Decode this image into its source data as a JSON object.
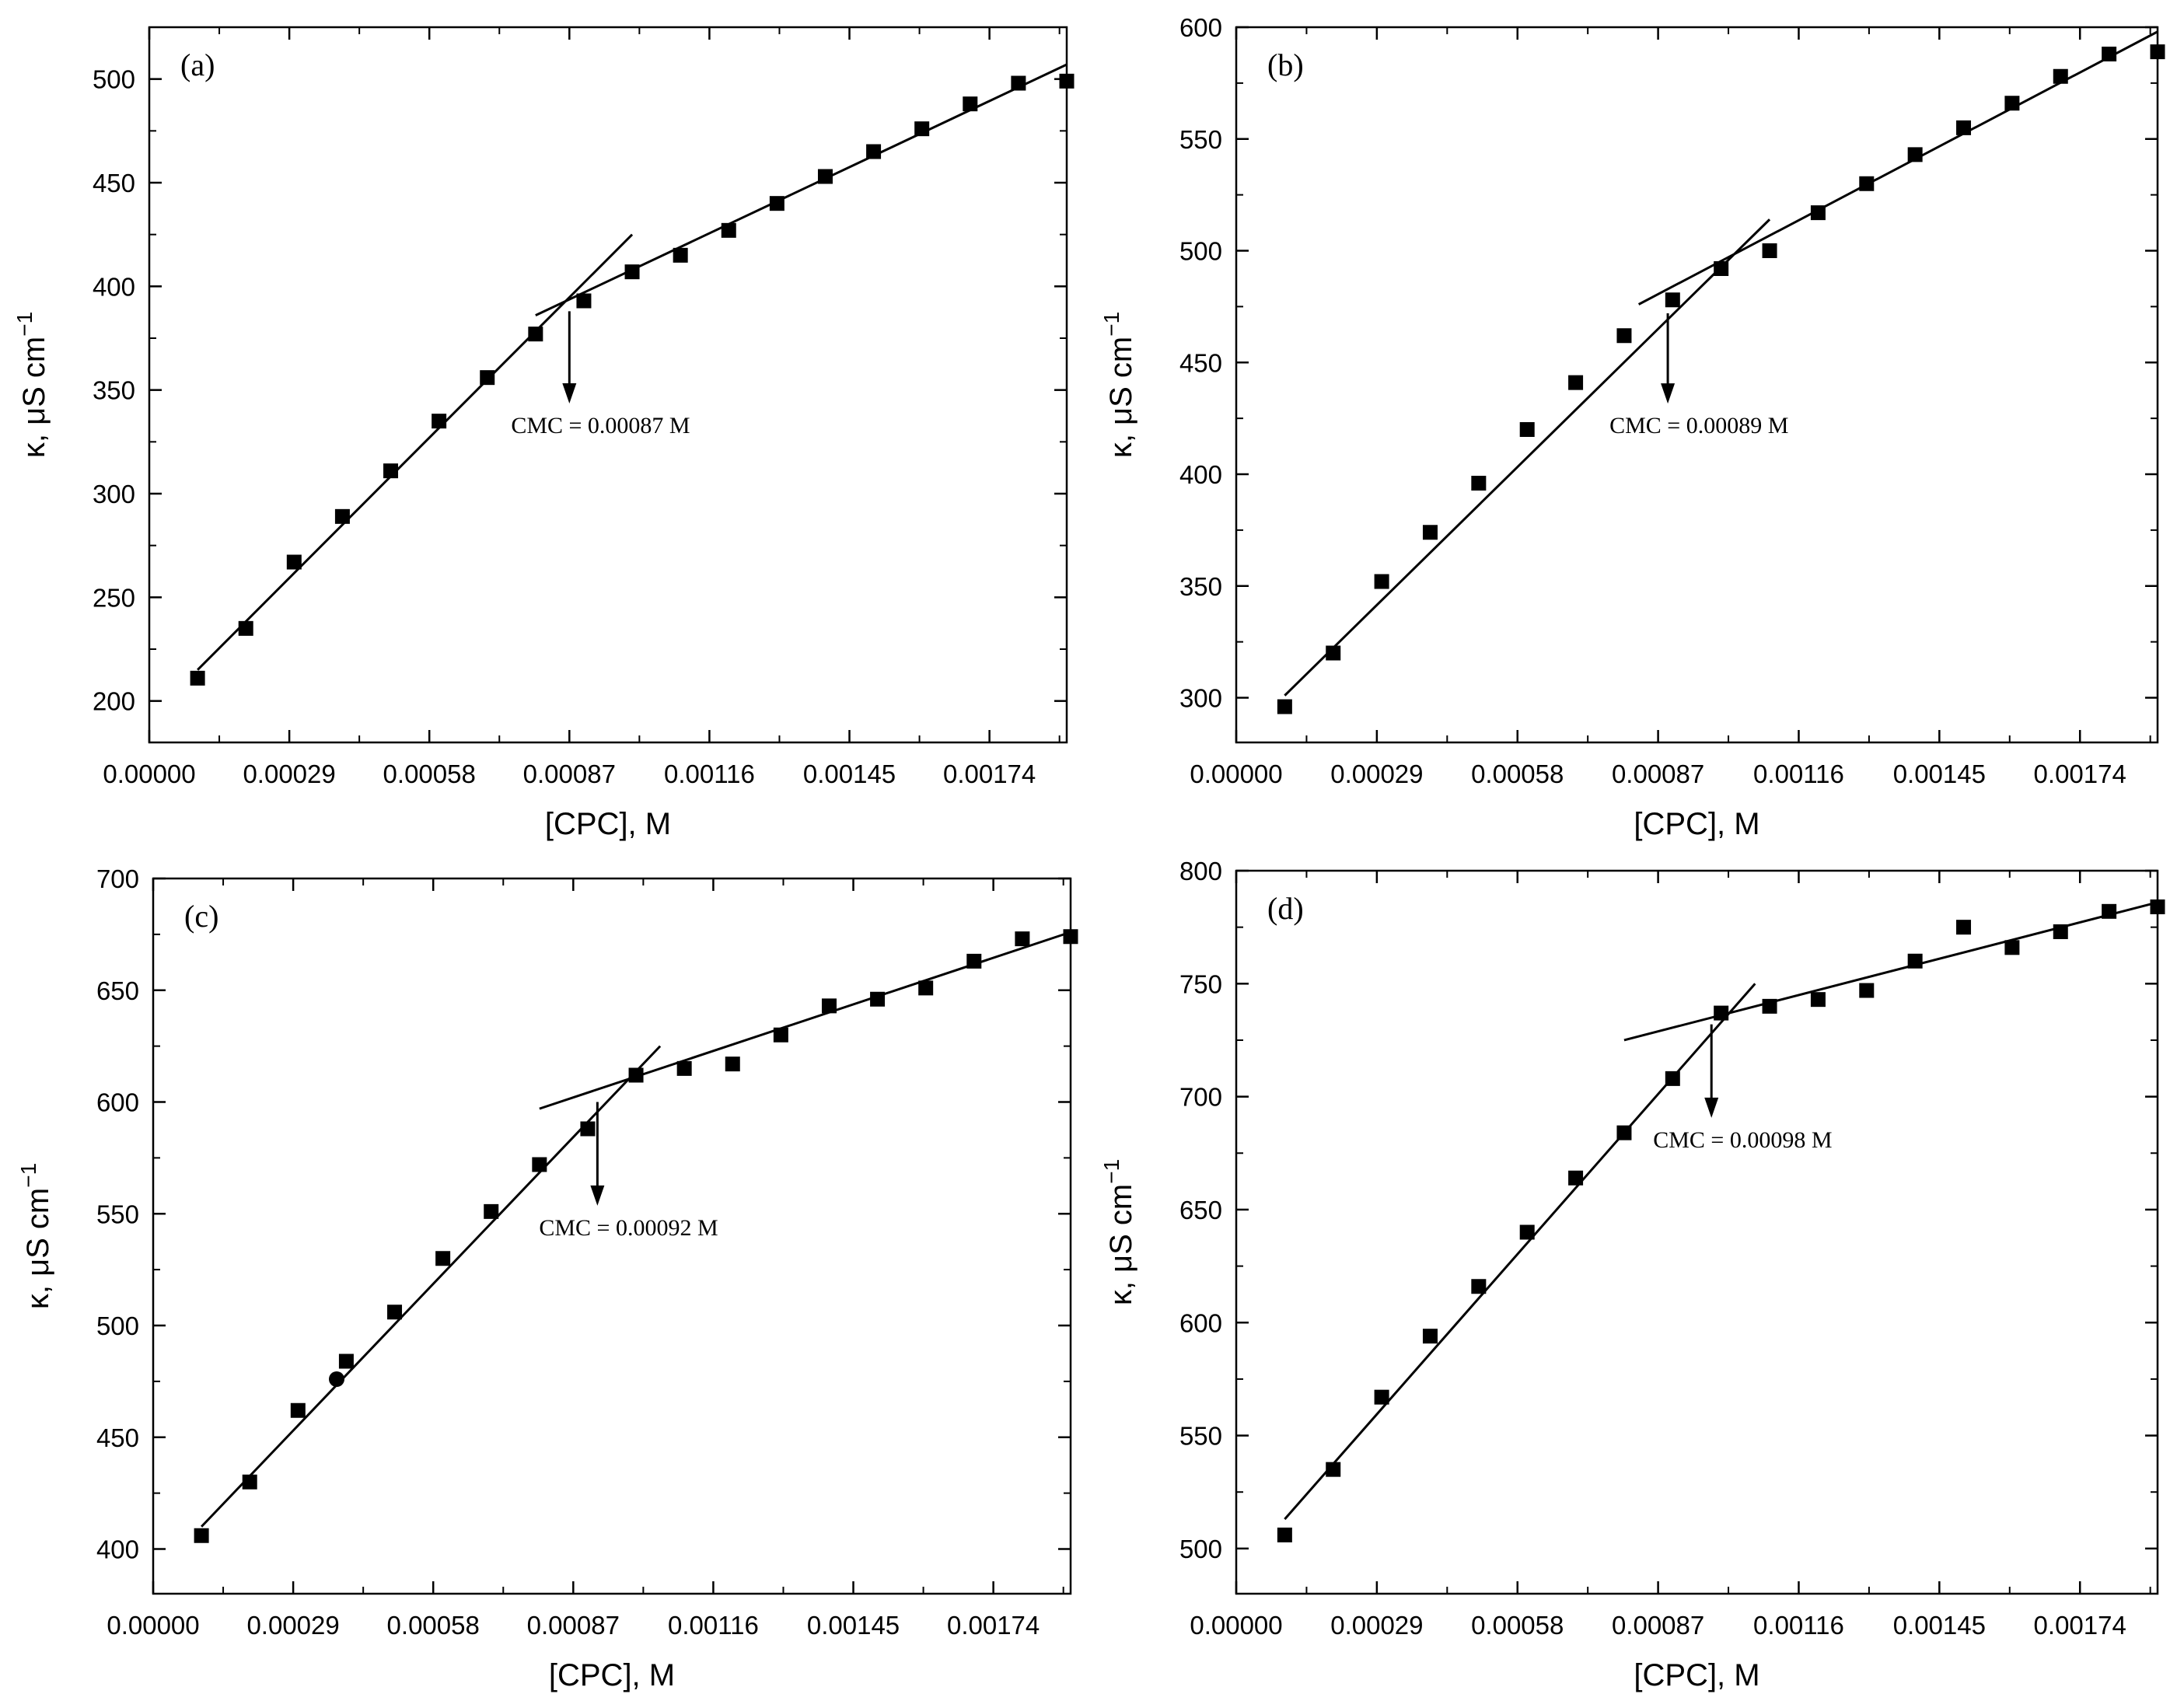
{
  "chart_data": [
    {
      "panel": "(a)",
      "type": "scatter",
      "xlabel": "[CPC], M",
      "ylabel": "κ, μS cm",
      "ylabel_sup": "−1",
      "xlim": [
        0,
        0.0019
      ],
      "ylim": [
        180,
        525
      ],
      "xticks": [
        "0.00000",
        "0.00029",
        "0.00058",
        "0.00087",
        "0.00116",
        "0.00145",
        "0.00174"
      ],
      "xtick_values": [
        0,
        0.00029,
        0.00058,
        0.00087,
        0.00116,
        0.00145,
        0.00174
      ],
      "yticks": [
        200,
        250,
        300,
        350,
        400,
        450,
        500
      ],
      "x": [
        0.0001,
        0.0002,
        0.0003,
        0.0004,
        0.0005,
        0.0006,
        0.0007,
        0.0008,
        0.0009,
        0.001,
        0.0011,
        0.0012,
        0.0013,
        0.0014,
        0.0015,
        0.0016,
        0.0017,
        0.0018,
        0.0019
      ],
      "y": [
        211,
        235,
        267,
        289,
        311,
        335,
        356,
        377,
        393,
        407,
        415,
        427,
        440,
        453,
        465,
        476,
        488,
        498,
        499
      ],
      "fit_lines": [
        {
          "x": [
            0.0001,
            0.001
          ],
          "y": [
            215,
            425
          ]
        },
        {
          "x": [
            0.0008,
            0.0019
          ],
          "y": [
            386,
            507
          ]
        }
      ],
      "annotation": {
        "text": "CMC = 0.00087 M",
        "x": 0.00087,
        "arrow_from": 388,
        "arrow_to": 345
      }
    },
    {
      "panel": "(b)",
      "type": "scatter",
      "xlabel": "[CPC], M",
      "ylabel": "κ, μS cm",
      "ylabel_sup": "−1",
      "xlim": [
        0,
        0.0019
      ],
      "ylim": [
        280,
        600
      ],
      "xticks": [
        "0.00000",
        "0.00029",
        "0.00058",
        "0.00087",
        "0.00116",
        "0.00145",
        "0.00174"
      ],
      "xtick_values": [
        0,
        0.00029,
        0.00058,
        0.00087,
        0.00116,
        0.00145,
        0.00174
      ],
      "yticks": [
        300,
        350,
        400,
        450,
        500,
        550,
        600
      ],
      "x": [
        0.0001,
        0.0002,
        0.0003,
        0.0004,
        0.0005,
        0.0006,
        0.0007,
        0.0008,
        0.0009,
        0.001,
        0.0011,
        0.0012,
        0.0013,
        0.0014,
        0.0015,
        0.0016,
        0.0017,
        0.0018,
        0.0019
      ],
      "y": [
        296,
        320,
        352,
        374,
        396,
        420,
        441,
        462,
        478,
        492,
        500,
        517,
        530,
        543,
        555,
        566,
        578,
        588,
        589
      ],
      "fit_lines": [
        {
          "x": [
            0.0001,
            0.0011
          ],
          "y": [
            301,
            514
          ]
        },
        {
          "x": [
            0.00083,
            0.0019
          ],
          "y": [
            476,
            598
          ]
        }
      ],
      "annotation": {
        "text": "CMC = 0.00089 M",
        "x": 0.00089,
        "arrow_from": 472,
        "arrow_to": 433
      }
    },
    {
      "panel": "(c)",
      "type": "scatter",
      "xlabel": "[CPC], M",
      "ylabel": "κ, μS cm",
      "ylabel_sup": "−1",
      "xlim": [
        0,
        0.0019
      ],
      "ylim": [
        380,
        700
      ],
      "xticks": [
        "0.00000",
        "0.00029",
        "0.00058",
        "0.00087",
        "0.00116",
        "0.00145",
        "0.00174"
      ],
      "xtick_values": [
        0,
        0.00029,
        0.00058,
        0.00087,
        0.00116,
        0.00145,
        0.00174
      ],
      "yticks": [
        400,
        450,
        500,
        550,
        600,
        650,
        700
      ],
      "x": [
        0.0001,
        0.0002,
        0.0003,
        0.0004,
        0.0005,
        0.0006,
        0.0007,
        0.0008,
        0.0009,
        0.001,
        0.0011,
        0.0012,
        0.0013,
        0.0014,
        0.0015,
        0.0016,
        0.0017,
        0.0018,
        0.0019
      ],
      "y": [
        406,
        430,
        462,
        484,
        506,
        530,
        551,
        572,
        588,
        612,
        615,
        617,
        630,
        643,
        646,
        651,
        663,
        673,
        674
      ],
      "extra_point": {
        "x": 0.00038,
        "y": 476
      },
      "fit_lines": [
        {
          "x": [
            0.0001,
            0.00105
          ],
          "y": [
            410,
            625
          ]
        },
        {
          "x": [
            0.0008,
            0.0019
          ],
          "y": [
            597,
            676
          ]
        }
      ],
      "annotation": {
        "text": "CMC = 0.00092 M",
        "x": 0.00092,
        "arrow_from": 600,
        "arrow_to": 555
      }
    },
    {
      "panel": "(d)",
      "type": "scatter",
      "xlabel": "[CPC], M",
      "ylabel": "κ, μS cm",
      "ylabel_sup": "−1",
      "xlim": [
        0,
        0.0019
      ],
      "ylim": [
        480,
        800
      ],
      "xticks": [
        "0.00000",
        "0.00029",
        "0.00058",
        "0.00087",
        "0.00116",
        "0.00145",
        "0.00174"
      ],
      "xtick_values": [
        0,
        0.00029,
        0.00058,
        0.00087,
        0.00116,
        0.00145,
        0.00174
      ],
      "yticks": [
        500,
        550,
        600,
        650,
        700,
        750,
        800
      ],
      "x": [
        0.0001,
        0.0002,
        0.0003,
        0.0004,
        0.0005,
        0.0006,
        0.0007,
        0.0008,
        0.0009,
        0.001,
        0.0011,
        0.0012,
        0.0013,
        0.0014,
        0.0015,
        0.0016,
        0.0017,
        0.0018,
        0.0019
      ],
      "y": [
        506,
        535,
        567,
        594,
        616,
        640,
        664,
        684,
        708,
        737,
        740,
        743,
        747,
        760,
        775,
        766,
        773,
        782,
        784
      ],
      "fit_lines": [
        {
          "x": [
            0.0001,
            0.00107
          ],
          "y": [
            513,
            750
          ]
        },
        {
          "x": [
            0.0008,
            0.0019
          ],
          "y": [
            725,
            786
          ]
        }
      ],
      "annotation": {
        "text": "CMC = 0.00098 M",
        "x": 0.00098,
        "arrow_from": 732,
        "arrow_to": 692
      }
    }
  ]
}
